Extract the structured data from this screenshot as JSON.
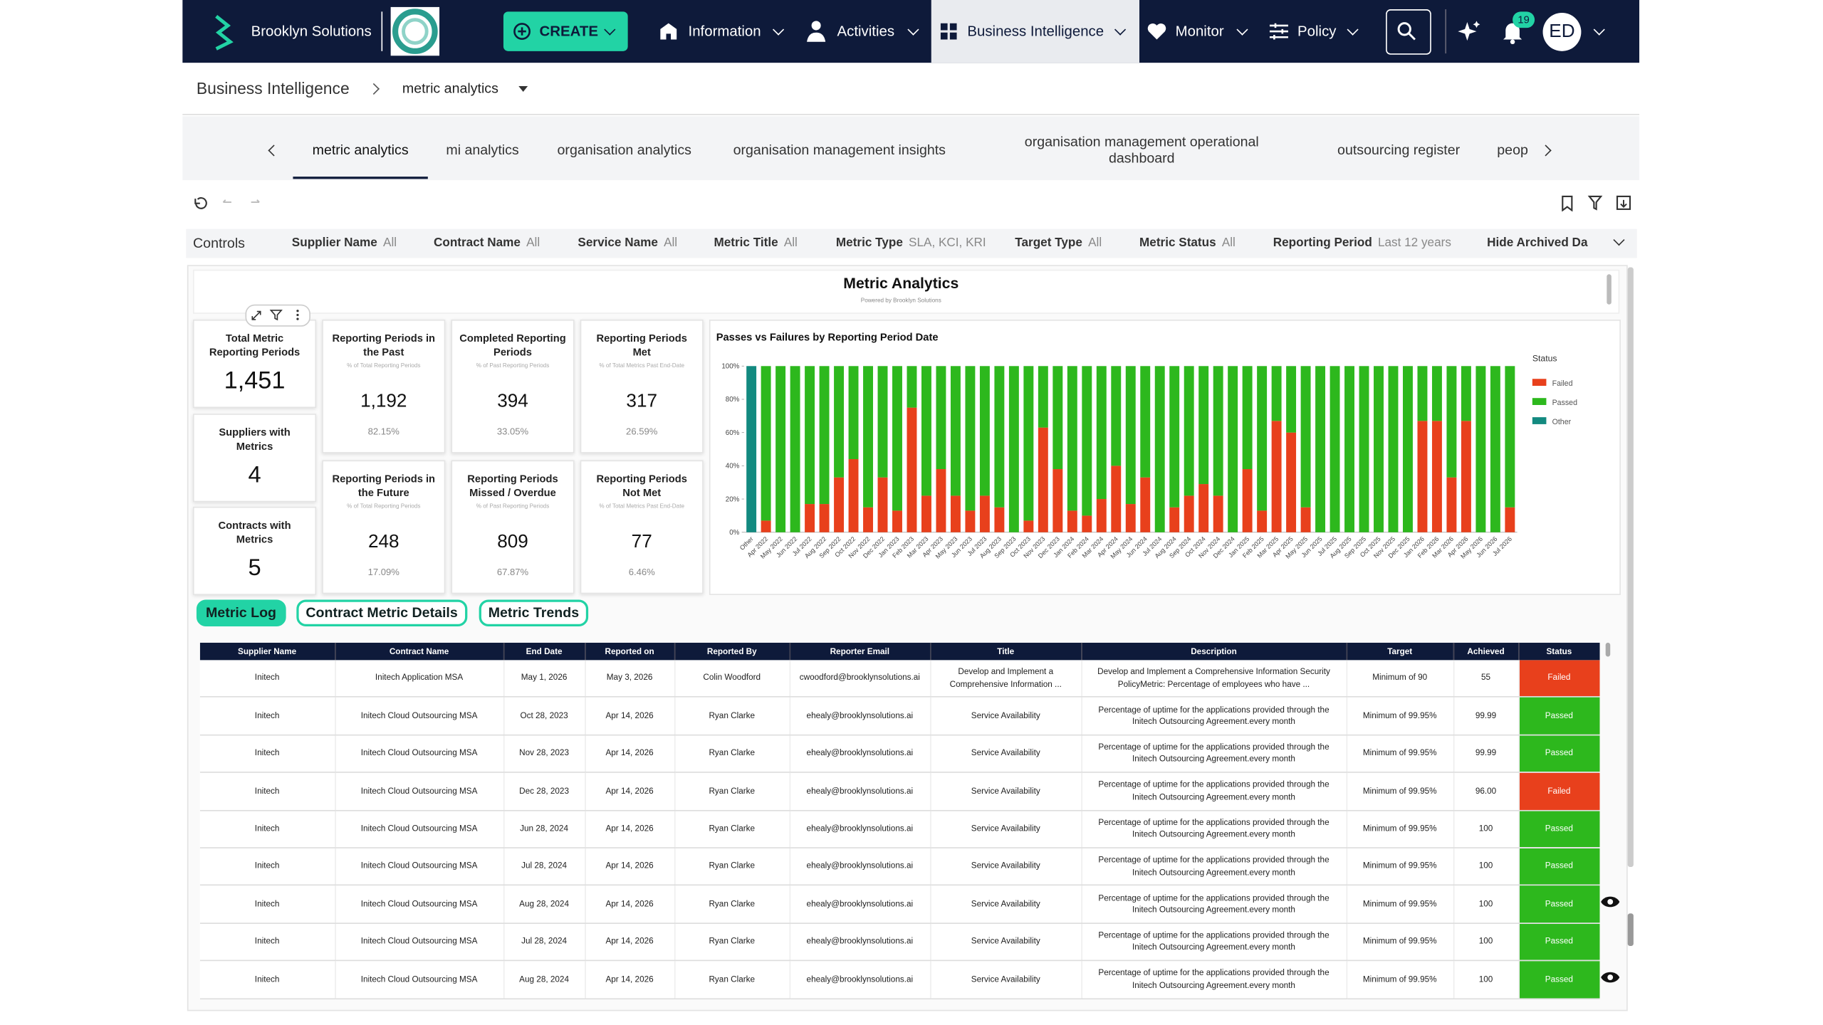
{
  "nav": {
    "brand": "Brooklyn Solutions",
    "create": "CREATE",
    "menu": [
      "Information",
      "Activities",
      "Business Intelligence",
      "Monitor",
      "Policy"
    ],
    "notifications": 19,
    "avatar": "ED"
  },
  "breadcrumb": {
    "root": "Business Intelligence",
    "current": "metric analytics"
  },
  "tabs": [
    "metric analytics",
    "mi analytics",
    "organisation analytics",
    "organisation management insights",
    "organisation management operational dashboard",
    "outsourcing register",
    "peop"
  ],
  "controls": {
    "label": "Controls",
    "filters": [
      {
        "name": "Supplier Name",
        "value": "All"
      },
      {
        "name": "Contract Name",
        "value": "All"
      },
      {
        "name": "Service Name",
        "value": "All"
      },
      {
        "name": "Metric Title",
        "value": "All"
      },
      {
        "name": "Metric Type",
        "value": "SLA, KCI, KRI"
      },
      {
        "name": "Target Type",
        "value": "All"
      },
      {
        "name": "Metric Status",
        "value": "All"
      },
      {
        "name": "Reporting Period",
        "value": "Last 12 years"
      },
      {
        "name": "Hide Archived Da"
      }
    ]
  },
  "dashboard": {
    "title": "Metric Analytics",
    "powered": "Powered by Brooklyn Solutions"
  },
  "kpis": {
    "left": [
      {
        "title": "Total Metric Reporting Periods",
        "value": "1,451"
      },
      {
        "title": "Suppliers with Metrics",
        "value": "4"
      },
      {
        "title": "Contracts with Metrics",
        "value": "5"
      }
    ],
    "grid": [
      {
        "title": "Reporting Periods in the Past",
        "note": "% of Total Reporting Periods",
        "value": "1,192",
        "percent": "82.15%"
      },
      {
        "title": "Completed Reporting Periods",
        "note": "% of Past Reporting Periods",
        "value": "394",
        "percent": "33.05%"
      },
      {
        "title": "Reporting Periods Met",
        "note": "% of Total Metrics Past End-Date",
        "value": "317",
        "percent": "26.59%"
      },
      {
        "title": "Reporting Periods in the Future",
        "note": "% of Total Reporting Periods",
        "value": "248",
        "percent": "17.09%"
      },
      {
        "title": "Reporting Periods Missed / Overdue",
        "note": "% of Past Reporting Periods",
        "value": "809",
        "percent": "67.87%"
      },
      {
        "title": "Reporting Periods Not Met",
        "note": "% of Total Metrics Past End-Date",
        "value": "77",
        "percent": "6.46%"
      }
    ]
  },
  "chart_data": {
    "type": "stacked_bar",
    "title": "Passes vs Failures by Reporting Period Date",
    "legend_title": "Status",
    "legend": "right",
    "categories": [
      "Other",
      "Apr 2022",
      "May 2022",
      "Jun 2022",
      "Jul 2022",
      "Aug 2022",
      "Sep 2022",
      "Oct 2022",
      "Nov 2022",
      "Dec 2022",
      "Jan 2023",
      "Feb 2023",
      "Mar 2023",
      "Apr 2023",
      "May 2023",
      "Jun 2023",
      "Jul 2023",
      "Aug 2023",
      "Sep 2023",
      "Oct 2023",
      "Nov 2023",
      "Dec 2023",
      "Jan 2024",
      "Feb 2024",
      "Mar 2024",
      "Apr 2024",
      "May 2024",
      "Jun 2024",
      "Jul 2024",
      "Aug 2024",
      "Sep 2024",
      "Oct 2024",
      "Nov 2024",
      "Dec 2024",
      "Jan 2025",
      "Feb 2025",
      "Mar 2025",
      "Apr 2025",
      "May 2025",
      "Jun 2025",
      "Jul 2025",
      "Aug 2025",
      "Sep 2025",
      "Oct 2025",
      "Nov 2025",
      "Dec 2025",
      "Jan 2026",
      "Feb 2026",
      "Mar 2026",
      "Apr 2026",
      "May 2026",
      "Jun 2026",
      "Jul 2026"
    ],
    "series": [
      {
        "name": "Failed",
        "color": "#e8401c",
        "values": [
          0,
          7,
          0,
          0,
          17,
          17,
          33,
          44,
          15,
          33,
          13,
          75,
          22,
          38,
          22,
          13,
          22,
          15,
          0,
          7,
          63,
          38,
          13,
          10,
          20,
          40,
          17,
          33,
          0,
          15,
          22,
          29,
          22,
          0,
          38,
          13,
          67,
          60,
          15,
          0,
          0,
          0,
          0,
          0,
          0,
          0,
          67,
          67,
          33,
          67,
          0,
          0,
          15
        ]
      },
      {
        "name": "Passed",
        "color": "#2db81d",
        "values": [
          0,
          93,
          100,
          100,
          83,
          83,
          67,
          56,
          85,
          67,
          87,
          25,
          78,
          62,
          78,
          87,
          78,
          85,
          100,
          93,
          37,
          62,
          87,
          90,
          80,
          60,
          83,
          67,
          100,
          85,
          78,
          71,
          78,
          100,
          62,
          87,
          33,
          40,
          85,
          100,
          100,
          100,
          100,
          100,
          100,
          100,
          33,
          33,
          67,
          33,
          100,
          100,
          85
        ]
      },
      {
        "name": "Other",
        "color": "#138a80",
        "values": [
          100,
          0,
          0,
          0,
          0,
          0,
          0,
          0,
          0,
          0,
          0,
          0,
          0,
          0,
          0,
          0,
          0,
          0,
          0,
          0,
          0,
          0,
          0,
          0,
          0,
          0,
          0,
          0,
          0,
          0,
          0,
          0,
          0,
          0,
          0,
          0,
          0,
          0,
          0,
          0,
          0,
          0,
          0,
          0,
          0,
          0,
          0,
          0,
          0,
          0,
          0,
          0,
          0
        ]
      }
    ],
    "ylim": [
      0,
      100
    ],
    "yticks": [
      {
        "value": 0,
        "label": "0%"
      },
      {
        "value": 20,
        "label": "20%"
      },
      {
        "value": 40,
        "label": "40%"
      },
      {
        "value": 60,
        "label": "60%"
      },
      {
        "value": 80,
        "label": "80%"
      },
      {
        "value": 100,
        "label": "100%"
      }
    ]
  },
  "buttons": [
    "Metric Log",
    "Contract Metric Details",
    "Metric Trends"
  ],
  "table": {
    "columns": [
      "Supplier Name",
      "Contract Name",
      "End Date",
      "Reported on",
      "Reported By",
      "Reporter Email",
      "Title",
      "Description",
      "Target",
      "Achieved",
      "Status"
    ],
    "status_colors": {
      "Failed": "#e8401c",
      "Passed": "#2db81d"
    },
    "rows": [
      [
        "Initech",
        "Initech Application MSA",
        "May 1, 2026",
        "May 3, 2026",
        "Colin Woodford",
        "cwoodford@brooklynsolutions.ai",
        "Develop and Implement a Comprehensive Information ...",
        "Develop and Implement a Comprehensive Information Security PolicyMetric: Percentage of employees who have ...",
        "Minimum of 90",
        "55",
        "Failed"
      ],
      [
        "Initech",
        "Initech Cloud Outsourcing MSA",
        "Oct 28, 2023",
        "Apr 14, 2026",
        "Ryan Clarke",
        "ehealy@brooklynsolutions.ai",
        "Service Availability",
        "Percentage of uptime for the applications provided through the Initech Outsourcing Agreement.every month",
        "Minimum of 99.95%",
        "99.99",
        "Passed"
      ],
      [
        "Initech",
        "Initech Cloud Outsourcing MSA",
        "Nov 28, 2023",
        "Apr 14, 2026",
        "Ryan Clarke",
        "ehealy@brooklynsolutions.ai",
        "Service Availability",
        "Percentage of uptime for the applications provided through the Initech Outsourcing Agreement.every month",
        "Minimum of 99.95%",
        "99.99",
        "Passed"
      ],
      [
        "Initech",
        "Initech Cloud Outsourcing MSA",
        "Dec 28, 2023",
        "Apr 14, 2026",
        "Ryan Clarke",
        "ehealy@brooklynsolutions.ai",
        "Service Availability",
        "Percentage of uptime for the applications provided through the Initech Outsourcing Agreement.every month",
        "Minimum of 99.95%",
        "96.00",
        "Failed"
      ],
      [
        "Initech",
        "Initech Cloud Outsourcing MSA",
        "Jun 28, 2024",
        "Apr 14, 2026",
        "Ryan Clarke",
        "ehealy@brooklynsolutions.ai",
        "Service Availability",
        "Percentage of uptime for the applications provided through the Initech Outsourcing Agreement.every month",
        "Minimum of 99.95%",
        "100",
        "Passed"
      ],
      [
        "Initech",
        "Initech Cloud Outsourcing MSA",
        "Jul 28, 2024",
        "Apr 14, 2026",
        "Ryan Clarke",
        "ehealy@brooklynsolutions.ai",
        "Service Availability",
        "Percentage of uptime for the applications provided through the Initech Outsourcing Agreement.every month",
        "Minimum of 99.95%",
        "100",
        "Passed"
      ],
      [
        "Initech",
        "Initech Cloud Outsourcing MSA",
        "Aug 28, 2024",
        "Apr 14, 2026",
        "Ryan Clarke",
        "ehealy@brooklynsolutions.ai",
        "Service Availability",
        "Percentage of uptime for the applications provided through the Initech Outsourcing Agreement.every month",
        "Minimum of 99.95%",
        "100",
        "Passed"
      ],
      [
        "Initech",
        "Initech Cloud Outsourcing MSA",
        "Jul 28, 2024",
        "Apr 14, 2026",
        "Ryan Clarke",
        "ehealy@brooklynsolutions.ai",
        "Service Availability",
        "Percentage of uptime for the applications provided through the Initech Outsourcing Agreement.every month",
        "Minimum of 99.95%",
        "100",
        "Passed"
      ],
      [
        "Initech",
        "Initech Cloud Outsourcing MSA",
        "Aug 28, 2024",
        "Apr 14, 2026",
        "Ryan Clarke",
        "ehealy@brooklynsolutions.ai",
        "Service Availability",
        "Percentage of uptime for the applications provided through the Initech Outsourcing Agreement.every month",
        "Minimum of 99.95%",
        "100",
        "Passed"
      ]
    ]
  }
}
